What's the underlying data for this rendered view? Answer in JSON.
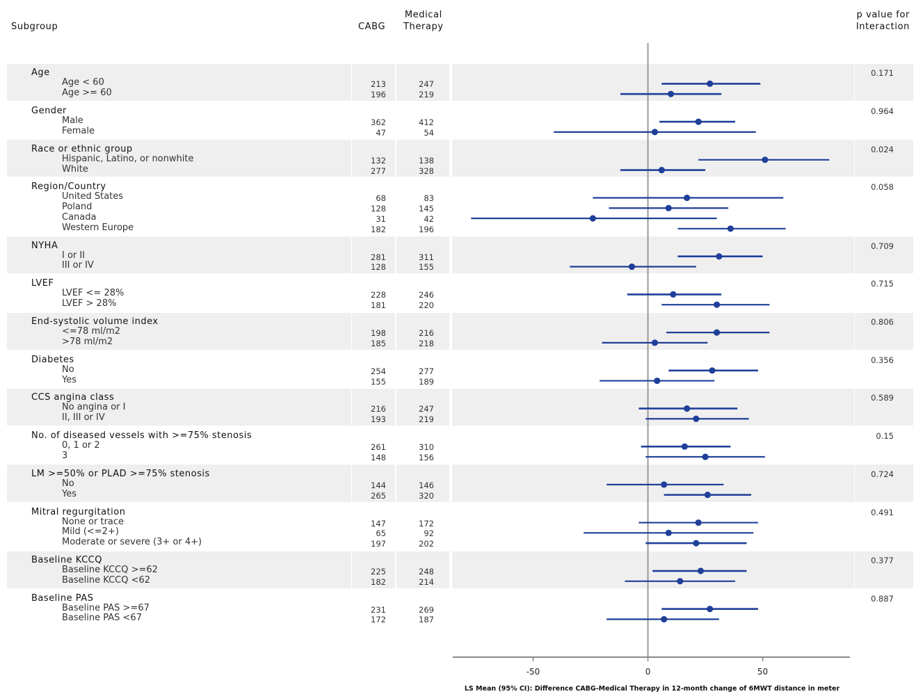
{
  "headers": {
    "subgroup": "Subgroup",
    "cabg": "CABG",
    "medical_line1": "Medical",
    "medical_line2": "Therapy",
    "pval_line1": "p value for",
    "pval_line2": "Interaction"
  },
  "chart_data": {
    "type": "forest",
    "xlabel": "LS Mean (95% CI): Difference CABG-Medical Therapy in 12-month change of 6MWT distance in meter",
    "xlim": [
      -85,
      88
    ],
    "xticks": [
      -50,
      0,
      50
    ],
    "reference_line": 0,
    "groups": [
      {
        "name": "Age",
        "p": "0.171",
        "rows": [
          {
            "label": "Age < 60",
            "cabg": "213",
            "med": "247",
            "mean": 27,
            "lo": 6,
            "hi": 49
          },
          {
            "label": "Age >= 60",
            "cabg": "196",
            "med": "219",
            "mean": 10,
            "lo": -12,
            "hi": 32
          }
        ]
      },
      {
        "name": "Gender",
        "p": "0.964",
        "rows": [
          {
            "label": "Male",
            "cabg": "362",
            "med": "412",
            "mean": 22,
            "lo": 5,
            "hi": 38
          },
          {
            "label": "Female",
            "cabg": "47",
            "med": "54",
            "mean": 3,
            "lo": -41,
            "hi": 47
          }
        ]
      },
      {
        "name": "Race or ethnic group",
        "p": "0.024",
        "rows": [
          {
            "label": "Hispanic, Latino, or nonwhite",
            "cabg": "132",
            "med": "138",
            "mean": 51,
            "lo": 22,
            "hi": 79
          },
          {
            "label": "White",
            "cabg": "277",
            "med": "328",
            "mean": 6,
            "lo": -12,
            "hi": 25
          }
        ]
      },
      {
        "name": "Region/Country",
        "p": "0.058",
        "rows": [
          {
            "label": "United States",
            "cabg": "68",
            "med": "83",
            "mean": 17,
            "lo": -24,
            "hi": 59
          },
          {
            "label": "Poland",
            "cabg": "128",
            "med": "145",
            "mean": 9,
            "lo": -17,
            "hi": 35
          },
          {
            "label": "Canada",
            "cabg": "31",
            "med": "42",
            "mean": -24,
            "lo": -77,
            "hi": 30
          },
          {
            "label": "Western Europe",
            "cabg": "182",
            "med": "196",
            "mean": 36,
            "lo": 13,
            "hi": 60
          }
        ]
      },
      {
        "name": "NYHA",
        "p": "0.709",
        "rows": [
          {
            "label": "I or II",
            "cabg": "281",
            "med": "311",
            "mean": 31,
            "lo": 13,
            "hi": 50
          },
          {
            "label": "III or IV",
            "cabg": "128",
            "med": "155",
            "mean": -7,
            "lo": -34,
            "hi": 21
          }
        ]
      },
      {
        "name": "LVEF",
        "p": "0.715",
        "rows": [
          {
            "label": "LVEF <= 28%",
            "cabg": "228",
            "med": "246",
            "mean": 11,
            "lo": -9,
            "hi": 32
          },
          {
            "label": "LVEF > 28%",
            "cabg": "181",
            "med": "220",
            "mean": 30,
            "lo": 6,
            "hi": 53
          }
        ]
      },
      {
        "name": "End-systolic volume index",
        "p": "0.806",
        "rows": [
          {
            "label": "<=78 ml/m2",
            "cabg": "198",
            "med": "216",
            "mean": 30,
            "lo": 8,
            "hi": 53
          },
          {
            "label": ">78 ml/m2",
            "cabg": "185",
            "med": "218",
            "mean": 3,
            "lo": -20,
            "hi": 26
          }
        ]
      },
      {
        "name": "Diabetes",
        "p": "0.356",
        "rows": [
          {
            "label": "No",
            "cabg": "254",
            "med": "277",
            "mean": 28,
            "lo": 9,
            "hi": 48
          },
          {
            "label": "Yes",
            "cabg": "155",
            "med": "189",
            "mean": 4,
            "lo": -21,
            "hi": 29
          }
        ]
      },
      {
        "name": "CCS angina class",
        "p": "0.589",
        "rows": [
          {
            "label": "No angina or I",
            "cabg": "216",
            "med": "247",
            "mean": 17,
            "lo": -4,
            "hi": 39
          },
          {
            "label": "II, III or IV",
            "cabg": "193",
            "med": "219",
            "mean": 21,
            "lo": -1,
            "hi": 44
          }
        ]
      },
      {
        "name": "No. of diseased vessels with >=75% stenosis",
        "p": "0.15",
        "rows": [
          {
            "label": "0, 1 or 2",
            "cabg": "261",
            "med": "310",
            "mean": 16,
            "lo": -3,
            "hi": 36
          },
          {
            "label": "3",
            "cabg": "148",
            "med": "156",
            "mean": 25,
            "lo": -1,
            "hi": 51
          }
        ]
      },
      {
        "name": "LM >=50% or PLAD >=75% stenosis",
        "p": "0.724",
        "rows": [
          {
            "label": "No",
            "cabg": "144",
            "med": "146",
            "mean": 7,
            "lo": -18,
            "hi": 33
          },
          {
            "label": "Yes",
            "cabg": "265",
            "med": "320",
            "mean": 26,
            "lo": 7,
            "hi": 45
          }
        ]
      },
      {
        "name": "Mitral regurgitation",
        "p": "0.491",
        "rows": [
          {
            "label": "None or trace",
            "cabg": "147",
            "med": "172",
            "mean": 22,
            "lo": -4,
            "hi": 48
          },
          {
            "label": "Mild (<=2+)",
            "cabg": "65",
            "med": "92",
            "mean": 9,
            "lo": -28,
            "hi": 46
          },
          {
            "label": "Moderate or severe (3+ or 4+)",
            "cabg": "197",
            "med": "202",
            "mean": 21,
            "lo": -1,
            "hi": 43
          }
        ]
      },
      {
        "name": "Baseline KCCQ",
        "p": "0.377",
        "rows": [
          {
            "label": "Baseline KCCQ >=62",
            "cabg": "225",
            "med": "248",
            "mean": 23,
            "lo": 2,
            "hi": 43
          },
          {
            "label": "Baseline KCCQ <62",
            "cabg": "182",
            "med": "214",
            "mean": 14,
            "lo": -10,
            "hi": 38
          }
        ]
      },
      {
        "name": "Baseline PAS",
        "p": "0.887",
        "rows": [
          {
            "label": "Baseline PAS >=67",
            "cabg": "231",
            "med": "269",
            "mean": 27,
            "lo": 6,
            "hi": 48
          },
          {
            "label": "Baseline PAS <67",
            "cabg": "172",
            "med": "187",
            "mean": 7,
            "lo": -18,
            "hi": 31
          }
        ]
      }
    ],
    "colors": {
      "ci": "#1f3f99",
      "point": "#1f3f99",
      "band": "#efefef",
      "refline": "#999999",
      "axis": "#888888"
    }
  }
}
